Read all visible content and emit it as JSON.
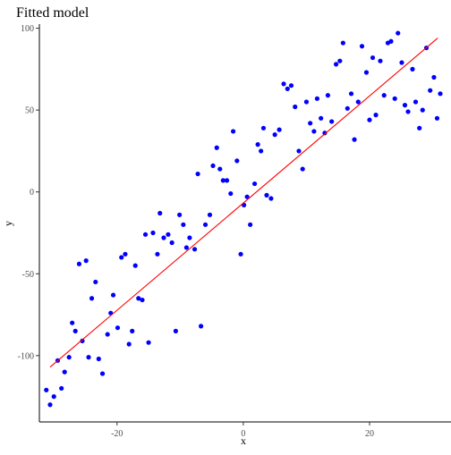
{
  "chart_data": {
    "type": "scatter",
    "title": "Fitted model",
    "xlabel": "x",
    "ylabel": "y",
    "xlim": [
      -32.3,
      32.9
    ],
    "ylim": [
      -140.5,
      102.5
    ],
    "x_ticks": [
      -20,
      0,
      20
    ],
    "x_tick_labels": [
      "-20",
      "0",
      "20"
    ],
    "y_ticks": [
      -100,
      -50,
      0,
      50,
      100
    ],
    "y_tick_labels": [
      "-100",
      "-50",
      "0",
      "50",
      "100"
    ],
    "grid": false,
    "legend": "none",
    "series": [
      {
        "kind": "points",
        "color": "#0000ff",
        "x": [
          -31.2,
          -30.6,
          -30.0,
          -29.4,
          -28.8,
          -28.3,
          -27.6,
          -27.1,
          -26.6,
          -26.0,
          -25.5,
          -24.9,
          -24.5,
          -24.0,
          -23.4,
          -22.9,
          -22.3,
          -21.5,
          -21.0,
          -20.6,
          -19.9,
          -19.3,
          -18.7,
          -18.1,
          -17.6,
          -17.1,
          -16.6,
          -16.0,
          -15.5,
          -15.0,
          -14.3,
          -13.6,
          -13.2,
          -12.6,
          -11.9,
          -11.3,
          -10.7,
          -10.1,
          -9.5,
          -9.0,
          -8.5,
          -7.7,
          -7.2,
          -6.7,
          -6.0,
          -5.3,
          -4.8,
          -4.2,
          -3.7,
          -3.2,
          -2.6,
          -2.0,
          -1.6,
          -1.0,
          -0.4,
          0.1,
          0.6,
          1.1,
          1.8,
          2.3,
          2.8,
          3.2,
          3.7,
          4.4,
          5.0,
          5.7,
          6.4,
          7.0,
          7.6,
          8.2,
          8.8,
          9.4,
          10.0,
          10.6,
          11.2,
          11.7,
          12.3,
          12.9,
          13.4,
          14.0,
          14.7,
          15.3,
          15.8,
          16.5,
          17.1,
          17.6,
          18.2,
          18.8,
          19.5,
          20.0,
          20.5,
          21.0,
          21.7,
          22.3,
          22.9,
          23.4,
          24.0,
          24.5,
          25.1,
          25.6,
          26.1,
          26.8,
          27.3,
          27.9,
          28.4,
          29.0,
          29.6,
          30.2,
          30.7,
          31.2
        ],
        "y": [
          -121,
          -130,
          -125,
          -103,
          -120,
          -110,
          -101,
          -80,
          -85,
          -44,
          -91,
          -42,
          -101,
          -65,
          -55,
          -102,
          -111,
          -87,
          -74,
          -63,
          -83,
          -40,
          -38,
          -93,
          -85,
          -45,
          -65,
          -66,
          -26,
          -92,
          -25,
          -38,
          -13,
          -28,
          -26,
          -31,
          -85,
          -14,
          -20,
          -34,
          -28,
          -35,
          11,
          -82,
          -20,
          -14,
          16,
          27,
          14,
          7,
          7,
          -1,
          37,
          19,
          -38,
          -8,
          -3,
          -20,
          5,
          29,
          25,
          39,
          -2,
          -4,
          35,
          38,
          66,
          63,
          65,
          52,
          25,
          14,
          55,
          42,
          37,
          57,
          45,
          36,
          59,
          43,
          78,
          80,
          91,
          51,
          60,
          32,
          55,
          89,
          73,
          44,
          82,
          47,
          80,
          59,
          91,
          92,
          57,
          97,
          79,
          53,
          49,
          75,
          55,
          39,
          50,
          88,
          62,
          70,
          45,
          60
        ]
      },
      {
        "kind": "line",
        "color": "#ff0000",
        "x": [
          -30.6,
          30.8
        ],
        "y": [
          -107,
          94
        ]
      }
    ]
  }
}
